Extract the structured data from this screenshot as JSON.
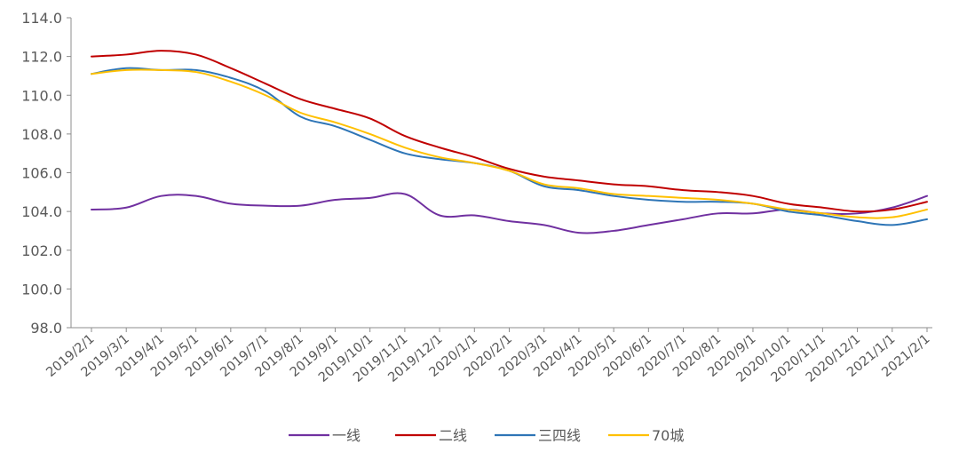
{
  "chart_data": {
    "type": "line",
    "title": "",
    "xlabel": "",
    "ylabel": "",
    "ylim": [
      98.0,
      114.0
    ],
    "y_ticks": [
      "98.0",
      "100.0",
      "102.0",
      "104.0",
      "106.0",
      "108.0",
      "110.0",
      "112.0",
      "114.0"
    ],
    "grid": false,
    "legend_position": "bottom",
    "x": [
      "2019/2/1",
      "2019/3/1",
      "2019/4/1",
      "2019/5/1",
      "2019/6/1",
      "2019/7/1",
      "2019/8/1",
      "2019/9/1",
      "2019/10/1",
      "2019/11/1",
      "2019/12/1",
      "2020/1/1",
      "2020/2/1",
      "2020/3/1",
      "2020/4/1",
      "2020/5/1",
      "2020/6/1",
      "2020/7/1",
      "2020/8/1",
      "2020/9/1",
      "2020/10/1",
      "2020/11/1",
      "2020/12/1",
      "2021/1/1",
      "2021/2/1"
    ],
    "series": [
      {
        "name": "一线",
        "color": "#7030A0",
        "values": [
          104.1,
          104.2,
          104.8,
          104.8,
          104.4,
          104.3,
          104.3,
          104.6,
          104.7,
          104.9,
          103.8,
          103.8,
          103.5,
          103.3,
          102.9,
          103.0,
          103.3,
          103.6,
          103.9,
          103.9,
          104.1,
          103.9,
          103.9,
          104.2,
          104.8
        ]
      },
      {
        "name": "二线",
        "color": "#C00000",
        "values": [
          112.0,
          112.1,
          112.3,
          112.1,
          111.4,
          110.6,
          109.8,
          109.3,
          108.8,
          107.9,
          107.3,
          106.8,
          106.2,
          105.8,
          105.6,
          105.4,
          105.3,
          105.1,
          105.0,
          104.8,
          104.4,
          104.2,
          104.0,
          104.1,
          104.5
        ]
      },
      {
        "name": "三四线",
        "color": "#2E75B6",
        "values": [
          111.1,
          111.4,
          111.3,
          111.3,
          110.9,
          110.2,
          108.9,
          108.4,
          107.7,
          107.0,
          106.7,
          106.5,
          106.1,
          105.3,
          105.1,
          104.8,
          104.6,
          104.5,
          104.5,
          104.4,
          104.0,
          103.8,
          103.5,
          103.3,
          103.6
        ]
      },
      {
        "name": "70城",
        "color": "#FFC000",
        "values": [
          111.1,
          111.3,
          111.3,
          111.2,
          110.7,
          110.0,
          109.1,
          108.6,
          108.0,
          107.3,
          106.8,
          106.5,
          106.1,
          105.4,
          105.2,
          104.9,
          104.8,
          104.7,
          104.6,
          104.4,
          104.1,
          103.9,
          103.7,
          103.7,
          104.1
        ]
      }
    ]
  }
}
